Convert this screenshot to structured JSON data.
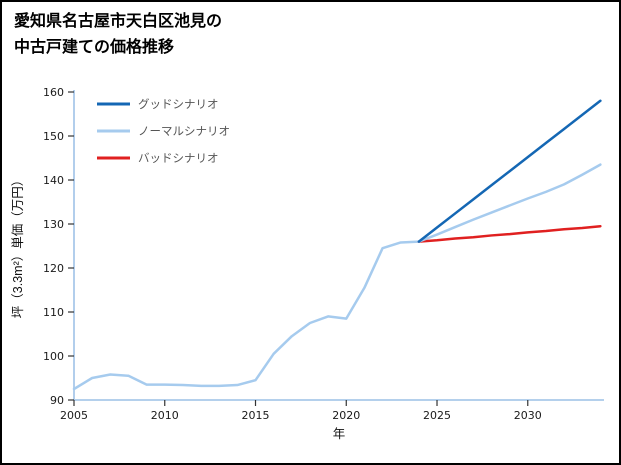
{
  "page": {
    "title_line1": "愛知県名古屋市天白区池見の",
    "title_line2": "中古戸建ての価格推移"
  },
  "chart_data": {
    "type": "line",
    "title": "愛知県名古屋市天白区池見の中古戸建ての価格推移",
    "xlabel": "年",
    "ylabel": "坪（3.3m²）単価（万円）",
    "xlim": [
      2005,
      2034.2
    ],
    "ylim": [
      90,
      160
    ],
    "xticks": [
      2005,
      2010,
      2015,
      2020,
      2025,
      2030
    ],
    "yticks": [
      90,
      100,
      110,
      120,
      130,
      140,
      150,
      160
    ],
    "grid": false,
    "legend_position": "upper-left",
    "axis_color": "#a9c9ea",
    "tick_color": "#333333",
    "series": [
      {
        "id": "history",
        "color": "#a6cbee",
        "width": 2.5,
        "x": [
          2005,
          2006,
          2007,
          2008,
          2009,
          2010,
          2011,
          2012,
          2013,
          2014,
          2015,
          2016,
          2017,
          2018,
          2019,
          2020,
          2021,
          2022,
          2023,
          2024
        ],
        "y": [
          92.5,
          95,
          95.8,
          95.5,
          93.5,
          93.5,
          93.4,
          93.2,
          93.2,
          93.4,
          94.5,
          100.5,
          104.5,
          107.5,
          109,
          108.5,
          115.5,
          124.5,
          125.8,
          126
        ]
      },
      {
        "id": "bad-scenario",
        "color": "#e02020",
        "width": 2.5,
        "x": [
          2024,
          2025,
          2026,
          2027,
          2028,
          2029,
          2030,
          2031,
          2032,
          2033,
          2034
        ],
        "y": [
          126,
          126.3,
          126.7,
          127,
          127.4,
          127.7,
          128.1,
          128.4,
          128.8,
          129.1,
          129.5
        ]
      },
      {
        "id": "normal-scenario",
        "color": "#a6cbee",
        "width": 2.5,
        "x": [
          2024,
          2025,
          2026,
          2027,
          2028,
          2029,
          2030,
          2031,
          2032,
          2033,
          2034
        ],
        "y": [
          126,
          127.6,
          129.3,
          131,
          132.6,
          134.2,
          135.8,
          137.3,
          139,
          141.2,
          143.5
        ]
      },
      {
        "id": "good-scenario",
        "color": "#1467b4",
        "width": 2.5,
        "x": [
          2024,
          2025,
          2026,
          2027,
          2028,
          2029,
          2030,
          2031,
          2032,
          2033,
          2034
        ],
        "y": [
          126,
          129.2,
          132.4,
          135.6,
          138.8,
          142,
          145.2,
          148.4,
          151.6,
          154.8,
          158
        ]
      }
    ],
    "legend": [
      {
        "label": "グッドシナリオ",
        "color": "#1467b4"
      },
      {
        "label": "ノーマルシナリオ",
        "color": "#a6cbee"
      },
      {
        "label": "バッドシナリオ",
        "color": "#e02020"
      }
    ]
  }
}
